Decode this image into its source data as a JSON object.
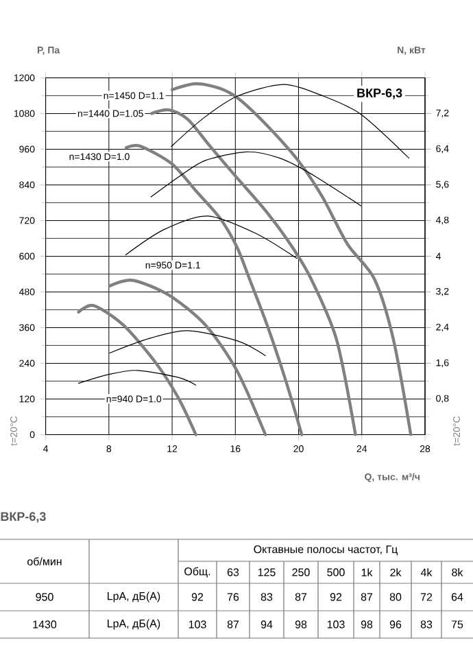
{
  "chart_data": {
    "type": "line",
    "title": "ВКР-6,3",
    "xlabel": "Q, тыс. м³/ч",
    "ylabel": "P, Па",
    "y2label": "N, кВт",
    "xlim": [
      4,
      28
    ],
    "xticks": [
      4,
      8,
      12,
      16,
      20,
      24,
      28
    ],
    "ylim": [
      0,
      1200
    ],
    "yticks": [
      0,
      120,
      240,
      360,
      480,
      600,
      720,
      840,
      960,
      1080,
      1200
    ],
    "y2lim": [
      0,
      8
    ],
    "y2ticks": [
      {
        "value": 0.8,
        "label": "0,8"
      },
      {
        "value": 1.6,
        "label": "1,6"
      },
      {
        "value": 2.4,
        "label": "2,4"
      },
      {
        "value": 3.2,
        "label": "3,2"
      },
      {
        "value": 4,
        "label": "4"
      },
      {
        "value": 4.8,
        "label": "4,8"
      },
      {
        "value": 5.6,
        "label": "5,6"
      },
      {
        "value": 6.4,
        "label": "6,4"
      },
      {
        "value": 7.2,
        "label": "7,2"
      }
    ],
    "grid": true,
    "line_style": "solid",
    "series": [
      {
        "name": "n=1450 D=1.1",
        "color": "#808080",
        "x": [
          12.0,
          13.5,
          15,
          16.2,
          18,
          20,
          21.5,
          23.1,
          24.8,
          26,
          27.1
        ],
        "values": [
          1160,
          1180,
          1165,
          1130,
          1040,
          920,
          800,
          640,
          523,
          320,
          0
        ]
      },
      {
        "name": "n=1440 D=1.05",
        "color": "#808080",
        "x": [
          10.7,
          11.8,
          13,
          14.4,
          16,
          17.9,
          19.6,
          20.8,
          22.4,
          23.6
        ],
        "values": [
          1080,
          1092,
          1060,
          970,
          870,
          754,
          631,
          523,
          320,
          0
        ]
      },
      {
        "name": "n=1430 D=1.0",
        "color": "#808080",
        "x": [
          9.1,
          10,
          12,
          13.5,
          15,
          16.1,
          16.9,
          18,
          19.2,
          20.2
        ],
        "values": [
          965,
          970,
          910,
          820,
          730,
          631,
          523,
          370,
          180,
          0
        ]
      },
      {
        "name": "n=950 D=1.1",
        "color": "#808080",
        "x": [
          8.05,
          9.5,
          11.8,
          14.1,
          16.1,
          17.9
        ],
        "values": [
          500,
          519,
          469,
          369,
          215,
          0
        ]
      },
      {
        "name": "n=940 D=1.0",
        "color": "#808080",
        "x": [
          6.08,
          7.04,
          8.9,
          10.9,
          12.4,
          13.5
        ],
        "values": [
          412,
          434,
          369,
          246,
          123,
          0
        ]
      },
      {
        "color": "#000000",
        "axis": "y2",
        "x": [
          11.95,
          14,
          16.14,
          19.04,
          21.5,
          23.95,
          26.98
        ],
        "values": [
          6.46,
          7.1,
          7.59,
          7.85,
          7.6,
          7.18,
          6.2
        ]
      },
      {
        "color": "#000000",
        "axis": "y2",
        "x": [
          10.66,
          12.5,
          14.12,
          16.72,
          18.8,
          20.77,
          23.95
        ],
        "values": [
          5.33,
          5.8,
          6.15,
          6.34,
          6.2,
          5.85,
          5.13
        ]
      },
      {
        "color": "#000000",
        "axis": "y2",
        "x": [
          9.06,
          11.5,
          14.26,
          17.3,
          19.9
        ],
        "values": [
          4.03,
          4.6,
          4.9,
          4.51,
          3.95
        ]
      },
      {
        "color": "#000000",
        "axis": "y2",
        "x": [
          8.05,
          10.5,
          12.96,
          16.14,
          17.9
        ],
        "values": [
          1.83,
          2.15,
          2.33,
          2.1,
          1.77
        ]
      },
      {
        "color": "#000000",
        "axis": "y2",
        "x": [
          6.08,
          8,
          9.8,
          12.4,
          13.5
        ],
        "values": [
          1.15,
          1.35,
          1.44,
          1.28,
          1.11
        ]
      }
    ],
    "annotations": [
      "t=20°C",
      "t=20°C",
      "ВКР-6,3",
      "об/мин",
      "Октавные полосы частот, Гц",
      "Общ.",
      "63",
      "125",
      "250",
      "500",
      "1k",
      "2k",
      "4k",
      "8k",
      "950",
      "LpA, дБ(A)",
      "92",
      "76",
      "83",
      "87",
      "92",
      "87",
      "80",
      "72",
      "64",
      "1430",
      "LpA, дБ(A)",
      "103",
      "87",
      "94",
      "98",
      "103",
      "98",
      "96",
      "83",
      "75"
    ]
  }
}
